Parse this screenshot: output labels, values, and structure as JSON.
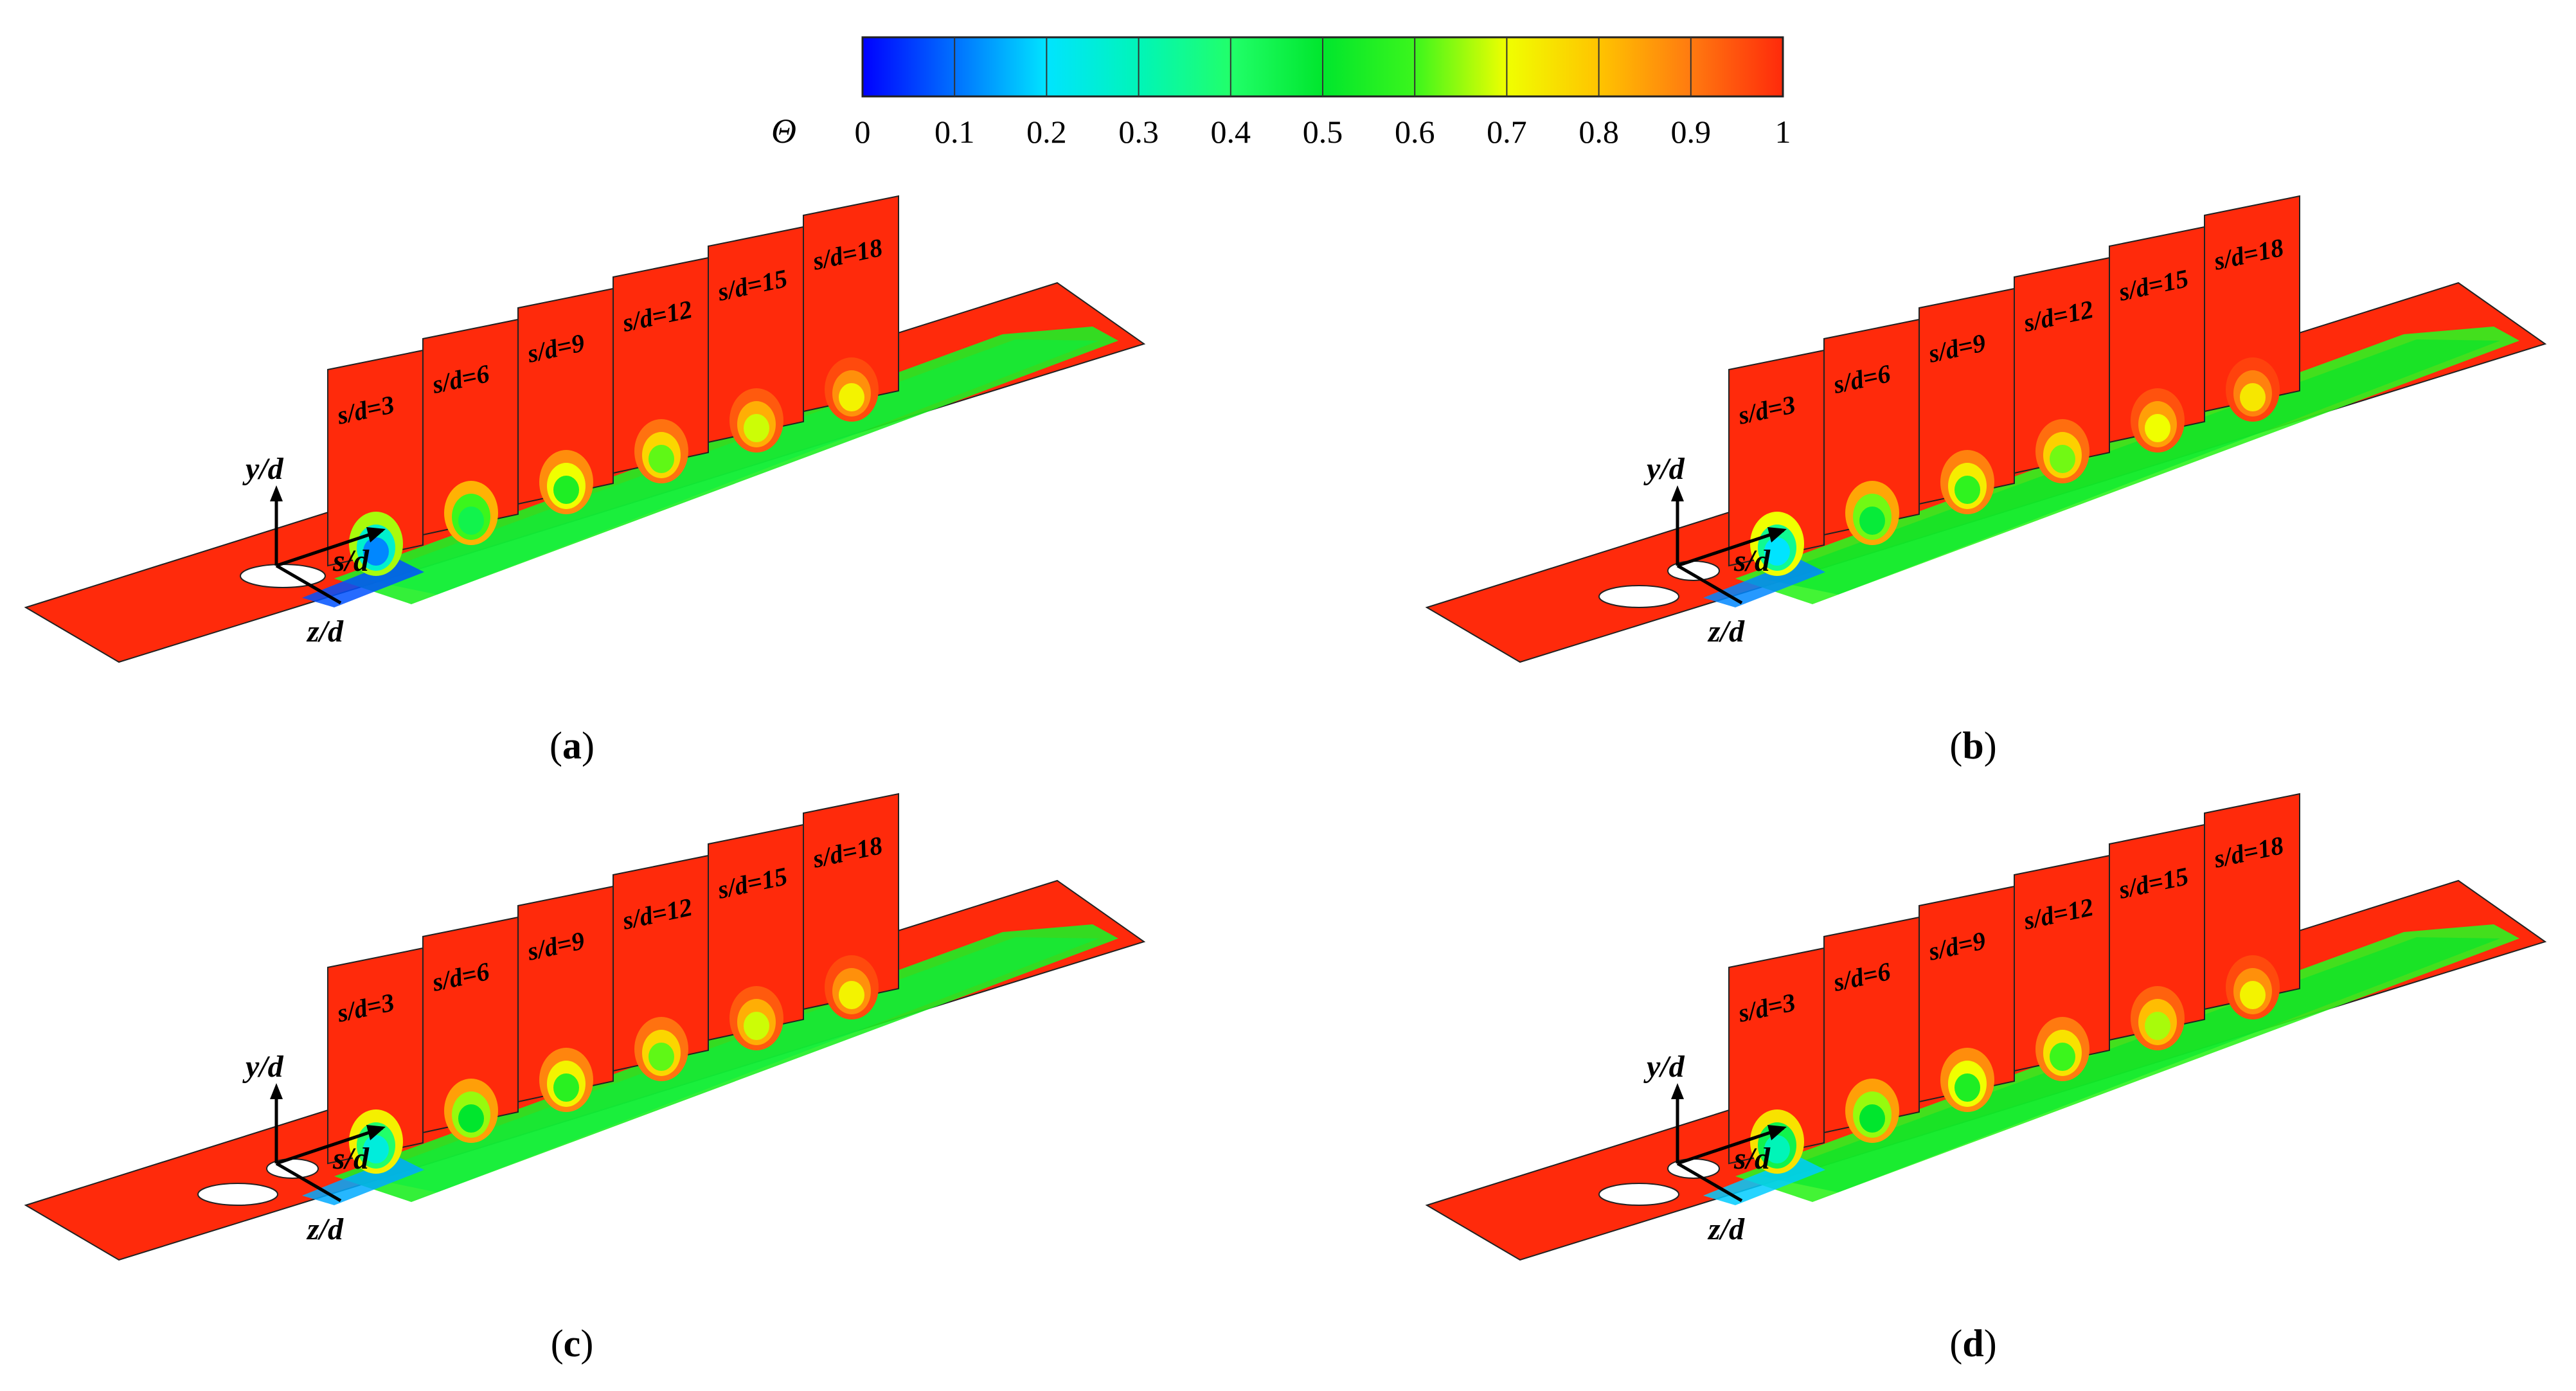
{
  "colorbar": {
    "symbol": "Θ",
    "ticks": [
      "0",
      "0.1",
      "0.2",
      "0.3",
      "0.4",
      "0.5",
      "0.6",
      "0.7",
      "0.8",
      "0.9",
      "1"
    ],
    "gradient_stops": [
      {
        "value": 0.0,
        "color": "#0000ff"
      },
      {
        "value": 0.1,
        "color": "#0070ff"
      },
      {
        "value": 0.2,
        "color": "#00e4ff"
      },
      {
        "value": 0.3,
        "color": "#00f5b8"
      },
      {
        "value": 0.4,
        "color": "#21ff6a"
      },
      {
        "value": 0.5,
        "color": "#00e62d"
      },
      {
        "value": 0.6,
        "color": "#3bf61c"
      },
      {
        "value": 0.7,
        "color": "#f0ff00"
      },
      {
        "value": 0.8,
        "color": "#ffc400"
      },
      {
        "value": 0.9,
        "color": "#ff7a10"
      },
      {
        "value": 1.0,
        "color": "#ff2a0b"
      }
    ]
  },
  "axes": {
    "y": "y/d",
    "s": "s/d",
    "z": "z/d"
  },
  "plane_labels": [
    "s/d=3",
    "s/d=6",
    "s/d=9",
    "s/d=12",
    "s/d=15",
    "s/d=18"
  ],
  "panels": [
    {
      "label": "a",
      "holes": 1,
      "plane_cores": [
        0.12,
        0.45,
        0.55,
        0.62,
        0.68,
        0.72
      ],
      "trail_core": 0.55,
      "plate_trail_end": 0.72
    },
    {
      "label": "b",
      "holes": 2,
      "plane_cores": [
        0.2,
        0.48,
        0.58,
        0.63,
        0.7,
        0.74
      ],
      "trail_core": 0.58,
      "plate_trail_end": 0.74
    },
    {
      "label": "c",
      "holes": 2,
      "plane_cores": [
        0.25,
        0.5,
        0.57,
        0.62,
        0.68,
        0.72
      ],
      "trail_core": 0.55,
      "plate_trail_end": 0.72
    },
    {
      "label": "d",
      "holes": 2,
      "plane_cores": [
        0.3,
        0.5,
        0.55,
        0.6,
        0.66,
        0.72
      ],
      "trail_core": 0.58,
      "plate_trail_end": 0.78
    }
  ],
  "colors": {
    "background": "#ff2a0b",
    "text": "#000000",
    "edge": "#222222",
    "hole": "#ffffff"
  }
}
